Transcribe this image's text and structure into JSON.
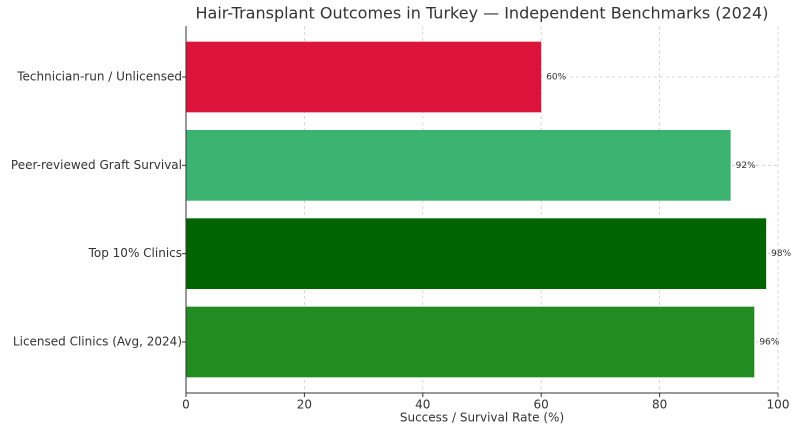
{
  "chart_data": {
    "type": "barh",
    "title": "Hair-Transplant Outcomes in Turkey — Independent Benchmarks (2024)",
    "x_label": "Success / Survival Rate (%)",
    "categories": [
      "Licensed Clinics (Avg, 2024)",
      "Top 10% Clinics",
      "Peer-reviewed Graft Survival",
      "Technician-run / Unlicensed"
    ],
    "values": [
      96,
      98,
      92,
      60
    ],
    "value_labels": [
      "96%",
      "98%",
      "92%",
      "60%"
    ],
    "colors": [
      "#228b22",
      "#006400",
      "#3cb371",
      "#dc143c"
    ],
    "xlim": [
      0,
      100
    ],
    "xticks": [
      0,
      20,
      40,
      60,
      80,
      100
    ],
    "grid": true
  }
}
